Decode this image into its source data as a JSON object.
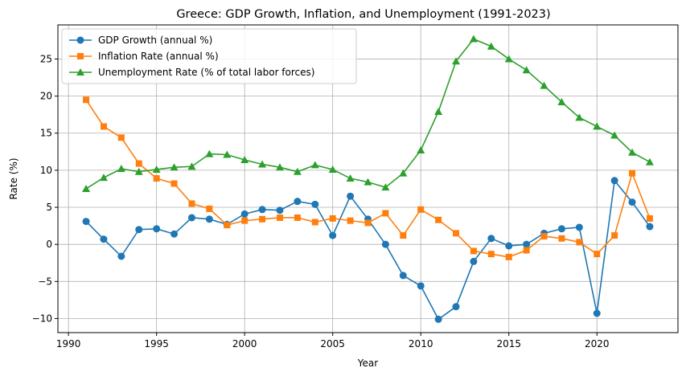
{
  "chart_data": {
    "type": "line",
    "title": "Greece: GDP Growth, Inflation, and Unemployment (1991-2023)",
    "xlabel": "Year",
    "ylabel": "Rate (%)",
    "xlim": [
      1989.4,
      2024.6
    ],
    "ylim": [
      -11.9,
      29.6
    ],
    "xticks": [
      1990,
      1995,
      2000,
      2005,
      2010,
      2015,
      2020
    ],
    "yticks": [
      -10,
      -5,
      0,
      5,
      10,
      15,
      20,
      25
    ],
    "grid": true,
    "legend_position": "upper-left",
    "x": [
      1991,
      1992,
      1993,
      1994,
      1995,
      1996,
      1997,
      1998,
      1999,
      2000,
      2001,
      2002,
      2003,
      2004,
      2005,
      2006,
      2007,
      2008,
      2009,
      2010,
      2011,
      2012,
      2013,
      2014,
      2015,
      2016,
      2017,
      2018,
      2019,
      2020,
      2021,
      2022,
      2023
    ],
    "series": [
      {
        "name": "GDP Growth (annual %)",
        "color": "#1f77b4",
        "marker": "circle",
        "values": [
          3.1,
          0.7,
          -1.6,
          2.0,
          2.1,
          1.4,
          3.6,
          3.4,
          2.7,
          4.1,
          4.7,
          4.6,
          5.8,
          5.4,
          1.2,
          6.5,
          3.4,
          0.0,
          -4.2,
          -5.6,
          -10.1,
          -8.4,
          -2.3,
          0.8,
          -0.2,
          0.0,
          1.5,
          2.1,
          2.3,
          -9.3,
          8.6,
          5.7,
          2.4
        ]
      },
      {
        "name": "Inflation Rate (annual %)",
        "color": "#ff7f0e",
        "marker": "square",
        "values": [
          19.5,
          15.9,
          14.4,
          10.9,
          8.9,
          8.2,
          5.5,
          4.8,
          2.6,
          3.2,
          3.4,
          3.6,
          3.6,
          3.0,
          3.5,
          3.2,
          2.9,
          4.2,
          1.2,
          4.7,
          3.3,
          1.5,
          -0.9,
          -1.3,
          -1.7,
          -0.8,
          1.1,
          0.8,
          0.3,
          -1.3,
          1.2,
          9.6,
          3.5
        ]
      },
      {
        "name": "Unemployment Rate (% of total labor forces)",
        "color": "#2ca02c",
        "marker": "triangle",
        "values": [
          7.5,
          9.0,
          10.2,
          9.8,
          10.1,
          10.4,
          10.5,
          12.2,
          12.1,
          11.4,
          10.8,
          10.4,
          9.8,
          10.7,
          10.1,
          8.9,
          8.4,
          7.7,
          9.6,
          12.7,
          17.9,
          24.7,
          27.7,
          26.7,
          25.0,
          23.5,
          21.4,
          19.2,
          17.1,
          15.9,
          14.7,
          12.4,
          11.1
        ]
      }
    ]
  }
}
